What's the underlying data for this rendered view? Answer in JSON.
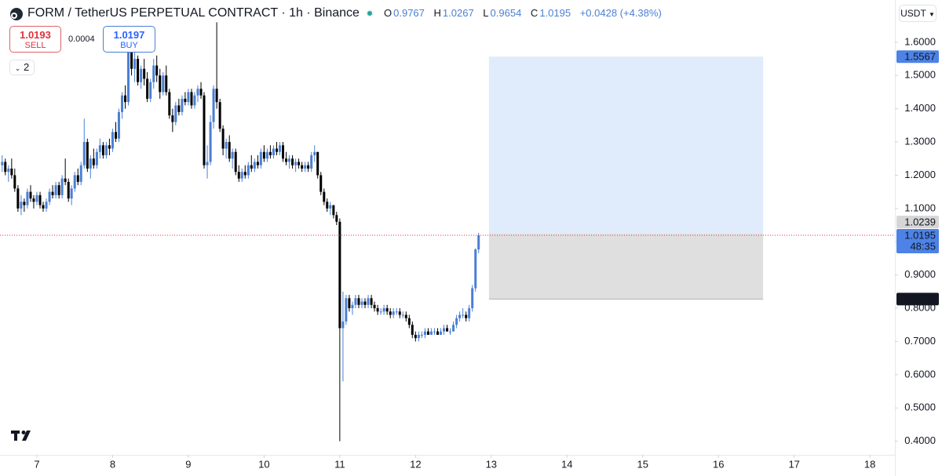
{
  "header": {
    "title": "FORM / TetherUS PERPETUAL CONTRACT · 1h · Binance",
    "ohlc_labels": [
      "O",
      "H",
      "L",
      "C"
    ],
    "change": "+0.0428 (+4.38%)"
  },
  "trade_panel": {
    "sell_price": 1.0193,
    "sell_label": "SELL",
    "spread": 0.0004,
    "buy_price": 1.0197,
    "buy_label": "BUY",
    "indicator_count": "2"
  },
  "currency": "USDT",
  "chart_data": {
    "type": "candlestick",
    "up_color": "#4a7fd4",
    "down_color": "#000000",
    "xlim": [
      6.513,
      18.33
    ],
    "xticks": [
      7,
      8,
      9,
      10,
      11,
      12,
      13,
      14,
      15,
      16,
      17,
      18
    ],
    "ylim": [
      0.359,
      1.727
    ],
    "yticks": [
      {
        "value": 0.4,
        "label": "0.4000"
      },
      {
        "value": 0.5,
        "label": "0.5000"
      },
      {
        "value": 0.6,
        "label": "0.6000"
      },
      {
        "value": 0.7,
        "label": "0.7000"
      },
      {
        "value": 0.8,
        "label": "0.8000"
      },
      {
        "value": 0.9,
        "label": "0.9000"
      },
      {
        "value": 1.0,
        "label": "1.0000"
      },
      {
        "value": 1.1,
        "label": "1.1000"
      },
      {
        "value": 1.2,
        "label": "1.2000"
      },
      {
        "value": 1.3,
        "label": "1.3000"
      },
      {
        "value": 1.4,
        "label": "1.4000"
      },
      {
        "value": 1.5,
        "label": "1.5000"
      },
      {
        "value": 1.6,
        "label": "1.6000"
      }
    ],
    "countdown": "48:35",
    "position": {
      "x_start": 12.97,
      "x_end": 16.59,
      "target": 1.5567,
      "entry": 1.0239,
      "stop": 0.8275,
      "target_color": "#dbe7fb",
      "stop_color": "#d9d9d9"
    },
    "x": [
      6.542,
      6.583,
      6.625,
      6.667,
      6.708,
      6.75,
      6.792,
      6.833,
      6.875,
      6.917,
      6.958,
      7.0,
      7.042,
      7.083,
      7.125,
      7.167,
      7.208,
      7.25,
      7.292,
      7.333,
      7.375,
      7.417,
      7.458,
      7.5,
      7.542,
      7.583,
      7.625,
      7.667,
      7.708,
      7.75,
      7.792,
      7.833,
      7.875,
      7.917,
      7.958,
      8.0,
      8.042,
      8.083,
      8.125,
      8.167,
      8.208,
      8.25,
      8.292,
      8.333,
      8.375,
      8.417,
      8.458,
      8.5,
      8.542,
      8.583,
      8.625,
      8.667,
      8.708,
      8.75,
      8.792,
      8.833,
      8.875,
      8.917,
      8.958,
      9.0,
      9.042,
      9.083,
      9.125,
      9.167,
      9.208,
      9.25,
      9.292,
      9.333,
      9.375,
      9.417,
      9.458,
      9.5,
      9.542,
      9.583,
      9.625,
      9.667,
      9.708,
      9.75,
      9.792,
      9.833,
      9.875,
      9.917,
      9.958,
      10.0,
      10.042,
      10.083,
      10.125,
      10.167,
      10.208,
      10.25,
      10.292,
      10.333,
      10.375,
      10.417,
      10.458,
      10.5,
      10.542,
      10.583,
      10.625,
      10.667,
      10.708,
      10.75,
      10.792,
      10.833,
      10.875,
      10.917,
      10.958,
      11.0,
      11.042,
      11.083,
      11.125,
      11.167,
      11.208,
      11.25,
      11.292,
      11.333,
      11.375,
      11.417,
      11.458,
      11.5,
      11.542,
      11.583,
      11.625,
      11.667,
      11.708,
      11.75,
      11.792,
      11.833,
      11.875,
      11.917,
      11.958,
      12.0,
      12.042,
      12.083,
      12.125,
      12.167,
      12.208,
      12.25,
      12.292,
      12.333,
      12.375,
      12.417,
      12.458,
      12.5,
      12.542,
      12.583,
      12.625,
      12.667,
      12.708,
      12.75,
      12.792,
      12.833
    ],
    "candles": [
      [
        1.23,
        1.26,
        1.21,
        1.24
      ],
      [
        1.24,
        1.25,
        1.2,
        1.21
      ],
      [
        1.21,
        1.23,
        1.18,
        1.22
      ],
      [
        1.22,
        1.25,
        1.19,
        1.2
      ],
      [
        1.2,
        1.22,
        1.15,
        1.16
      ],
      [
        1.16,
        1.17,
        1.09,
        1.1
      ],
      [
        1.1,
        1.14,
        1.08,
        1.12
      ],
      [
        1.12,
        1.13,
        1.09,
        1.11
      ],
      [
        1.11,
        1.16,
        1.1,
        1.15
      ],
      [
        1.15,
        1.17,
        1.12,
        1.13
      ],
      [
        1.13,
        1.14,
        1.1,
        1.12
      ],
      [
        1.12,
        1.15,
        1.11,
        1.14
      ],
      [
        1.14,
        1.15,
        1.1,
        1.11
      ],
      [
        1.11,
        1.12,
        1.09,
        1.1
      ],
      [
        1.1,
        1.13,
        1.09,
        1.12
      ],
      [
        1.12,
        1.16,
        1.11,
        1.15
      ],
      [
        1.15,
        1.17,
        1.13,
        1.14
      ],
      [
        1.14,
        1.18,
        1.13,
        1.17
      ],
      [
        1.17,
        1.18,
        1.13,
        1.14
      ],
      [
        1.14,
        1.2,
        1.13,
        1.19
      ],
      [
        1.19,
        1.25,
        1.17,
        1.18
      ],
      [
        1.18,
        1.19,
        1.12,
        1.13
      ],
      [
        1.13,
        1.17,
        1.11,
        1.16
      ],
      [
        1.16,
        1.21,
        1.15,
        1.2
      ],
      [
        1.2,
        1.22,
        1.17,
        1.18
      ],
      [
        1.18,
        1.24,
        1.17,
        1.23
      ],
      [
        1.23,
        1.37,
        1.22,
        1.3
      ],
      [
        1.3,
        1.31,
        1.21,
        1.22
      ],
      [
        1.22,
        1.26,
        1.19,
        1.25
      ],
      [
        1.25,
        1.28,
        1.22,
        1.23
      ],
      [
        1.23,
        1.28,
        1.22,
        1.27
      ],
      [
        1.27,
        1.31,
        1.25,
        1.29
      ],
      [
        1.29,
        1.3,
        1.25,
        1.26
      ],
      [
        1.26,
        1.3,
        1.25,
        1.29
      ],
      [
        1.29,
        1.31,
        1.26,
        1.28
      ],
      [
        1.28,
        1.34,
        1.27,
        1.33
      ],
      [
        1.33,
        1.36,
        1.3,
        1.31
      ],
      [
        1.31,
        1.4,
        1.3,
        1.39
      ],
      [
        1.39,
        1.45,
        1.37,
        1.44
      ],
      [
        1.44,
        1.47,
        1.4,
        1.42
      ],
      [
        1.42,
        1.645,
        1.41,
        1.58
      ],
      [
        1.58,
        1.6,
        1.5,
        1.52
      ],
      [
        1.52,
        1.57,
        1.48,
        1.55
      ],
      [
        1.55,
        1.56,
        1.47,
        1.48
      ],
      [
        1.48,
        1.53,
        1.46,
        1.52
      ],
      [
        1.52,
        1.55,
        1.47,
        1.49
      ],
      [
        1.49,
        1.51,
        1.42,
        1.43
      ],
      [
        1.43,
        1.49,
        1.42,
        1.48
      ],
      [
        1.48,
        1.55,
        1.46,
        1.53
      ],
      [
        1.53,
        1.56,
        1.48,
        1.5
      ],
      [
        1.5,
        1.52,
        1.43,
        1.45
      ],
      [
        1.45,
        1.51,
        1.44,
        1.5
      ],
      [
        1.5,
        1.53,
        1.44,
        1.45
      ],
      [
        1.45,
        1.46,
        1.37,
        1.38
      ],
      [
        1.38,
        1.4,
        1.33,
        1.36
      ],
      [
        1.36,
        1.42,
        1.35,
        1.41
      ],
      [
        1.41,
        1.43,
        1.38,
        1.39
      ],
      [
        1.39,
        1.44,
        1.38,
        1.43
      ],
      [
        1.43,
        1.45,
        1.41,
        1.42
      ],
      [
        1.42,
        1.46,
        1.41,
        1.45
      ],
      [
        1.45,
        1.46,
        1.4,
        1.41
      ],
      [
        1.41,
        1.45,
        1.4,
        1.44
      ],
      [
        1.44,
        1.47,
        1.42,
        1.46
      ],
      [
        1.46,
        1.48,
        1.43,
        1.44
      ],
      [
        1.44,
        1.45,
        1.22,
        1.23
      ],
      [
        1.23,
        1.29,
        1.19,
        1.24
      ],
      [
        1.24,
        1.38,
        1.23,
        1.36
      ],
      [
        1.36,
        1.47,
        1.34,
        1.46
      ],
      [
        1.46,
        1.66,
        1.4,
        1.42
      ],
      [
        1.42,
        1.43,
        1.33,
        1.34
      ],
      [
        1.34,
        1.35,
        1.26,
        1.28
      ],
      [
        1.28,
        1.31,
        1.25,
        1.3
      ],
      [
        1.3,
        1.32,
        1.24,
        1.25
      ],
      [
        1.25,
        1.28,
        1.22,
        1.27
      ],
      [
        1.27,
        1.28,
        1.2,
        1.21
      ],
      [
        1.21,
        1.23,
        1.18,
        1.19
      ],
      [
        1.19,
        1.22,
        1.18,
        1.21
      ],
      [
        1.21,
        1.23,
        1.19,
        1.2
      ],
      [
        1.2,
        1.24,
        1.19,
        1.23
      ],
      [
        1.23,
        1.26,
        1.21,
        1.22
      ],
      [
        1.22,
        1.25,
        1.21,
        1.24
      ],
      [
        1.24,
        1.26,
        1.22,
        1.23
      ],
      [
        1.23,
        1.28,
        1.22,
        1.27
      ],
      [
        1.27,
        1.29,
        1.24,
        1.25
      ],
      [
        1.25,
        1.28,
        1.24,
        1.27
      ],
      [
        1.27,
        1.29,
        1.25,
        1.26
      ],
      [
        1.26,
        1.29,
        1.25,
        1.28
      ],
      [
        1.28,
        1.3,
        1.26,
        1.27
      ],
      [
        1.27,
        1.3,
        1.26,
        1.29
      ],
      [
        1.29,
        1.3,
        1.24,
        1.25
      ],
      [
        1.25,
        1.27,
        1.23,
        1.24
      ],
      [
        1.24,
        1.26,
        1.22,
        1.25
      ],
      [
        1.25,
        1.26,
        1.22,
        1.23
      ],
      [
        1.23,
        1.25,
        1.21,
        1.24
      ],
      [
        1.24,
        1.25,
        1.22,
        1.23
      ],
      [
        1.23,
        1.24,
        1.21,
        1.22
      ],
      [
        1.22,
        1.24,
        1.21,
        1.23
      ],
      [
        1.23,
        1.24,
        1.21,
        1.22
      ],
      [
        1.22,
        1.27,
        1.21,
        1.26
      ],
      [
        1.26,
        1.29,
        1.24,
        1.27
      ],
      [
        1.27,
        1.27,
        1.19,
        1.2
      ],
      [
        1.2,
        1.21,
        1.14,
        1.15
      ],
      [
        1.15,
        1.16,
        1.11,
        1.12
      ],
      [
        1.12,
        1.13,
        1.09,
        1.1
      ],
      [
        1.1,
        1.12,
        1.08,
        1.11
      ],
      [
        1.11,
        1.11,
        1.07,
        1.08
      ],
      [
        1.08,
        1.09,
        1.05,
        1.06
      ],
      [
        1.06,
        1.07,
        0.4,
        0.74
      ],
      [
        0.74,
        0.85,
        0.58,
        0.76
      ],
      [
        0.76,
        0.84,
        0.75,
        0.83
      ],
      [
        0.83,
        0.84,
        0.79,
        0.8
      ],
      [
        0.8,
        0.82,
        0.78,
        0.81
      ],
      [
        0.81,
        0.84,
        0.8,
        0.83
      ],
      [
        0.83,
        0.84,
        0.8,
        0.81
      ],
      [
        0.81,
        0.83,
        0.8,
        0.82
      ],
      [
        0.82,
        0.83,
        0.8,
        0.81
      ],
      [
        0.81,
        0.84,
        0.8,
        0.83
      ],
      [
        0.83,
        0.84,
        0.8,
        0.81
      ],
      [
        0.81,
        0.82,
        0.79,
        0.8
      ],
      [
        0.8,
        0.81,
        0.78,
        0.79
      ],
      [
        0.79,
        0.8,
        0.78,
        0.79
      ],
      [
        0.79,
        0.81,
        0.78,
        0.8
      ],
      [
        0.8,
        0.81,
        0.78,
        0.79
      ],
      [
        0.79,
        0.8,
        0.77,
        0.78
      ],
      [
        0.78,
        0.8,
        0.77,
        0.79
      ],
      [
        0.79,
        0.8,
        0.78,
        0.79
      ],
      [
        0.79,
        0.8,
        0.77,
        0.78
      ],
      [
        0.78,
        0.79,
        0.77,
        0.78
      ],
      [
        0.78,
        0.79,
        0.76,
        0.77
      ],
      [
        0.77,
        0.78,
        0.74,
        0.75
      ],
      [
        0.75,
        0.76,
        0.71,
        0.72
      ],
      [
        0.72,
        0.73,
        0.7,
        0.71
      ],
      [
        0.71,
        0.73,
        0.7,
        0.72
      ],
      [
        0.72,
        0.73,
        0.71,
        0.72
      ],
      [
        0.72,
        0.74,
        0.71,
        0.73
      ],
      [
        0.73,
        0.74,
        0.72,
        0.72
      ],
      [
        0.72,
        0.74,
        0.72,
        0.73
      ],
      [
        0.73,
        0.74,
        0.72,
        0.73
      ],
      [
        0.73,
        0.74,
        0.72,
        0.72
      ],
      [
        0.72,
        0.74,
        0.72,
        0.73
      ],
      [
        0.73,
        0.75,
        0.72,
        0.74
      ],
      [
        0.74,
        0.75,
        0.73,
        0.73
      ],
      [
        0.73,
        0.74,
        0.72,
        0.73
      ],
      [
        0.73,
        0.76,
        0.73,
        0.75
      ],
      [
        0.75,
        0.78,
        0.74,
        0.77
      ],
      [
        0.77,
        0.79,
        0.76,
        0.78
      ],
      [
        0.78,
        0.8,
        0.77,
        0.78
      ],
      [
        0.78,
        0.79,
        0.76,
        0.77
      ],
      [
        0.77,
        0.81,
        0.76,
        0.8
      ],
      [
        0.8,
        0.87,
        0.79,
        0.86
      ],
      [
        0.86,
        0.98,
        0.85,
        0.9767
      ],
      [
        0.9767,
        1.0267,
        0.9654,
        1.0195
      ]
    ]
  }
}
